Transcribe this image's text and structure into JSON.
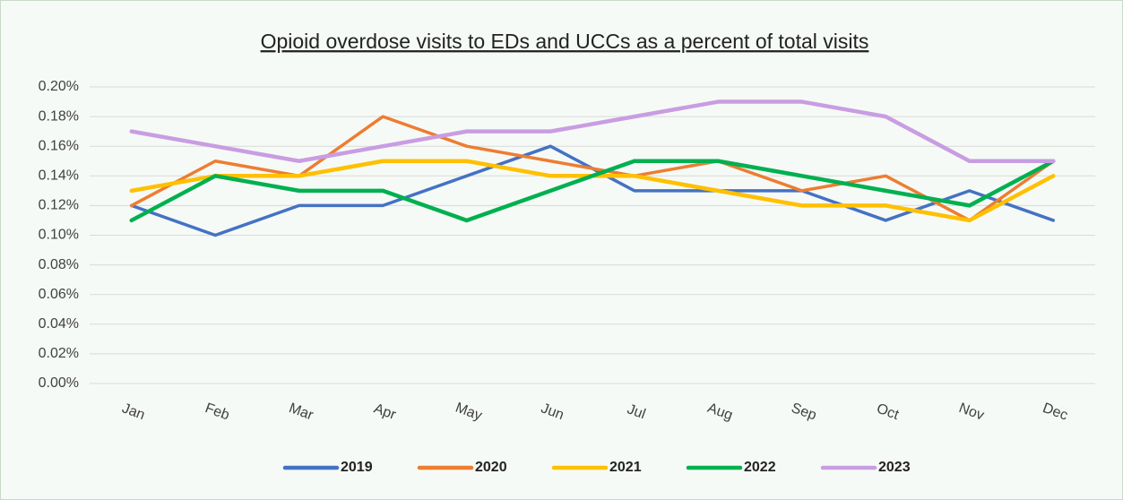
{
  "chart_data": {
    "type": "line",
    "title": "Opioid overdose visits to EDs and UCCs as a percent of total visits",
    "categories": [
      "Jan",
      "Feb",
      "Mar",
      "Apr",
      "May",
      "Jun",
      "Jul",
      "Aug",
      "Sep",
      "Oct",
      "Nov",
      "Dec"
    ],
    "series": [
      {
        "name": "2019",
        "color": "#4472c4",
        "values": [
          0.12,
          0.1,
          0.12,
          0.12,
          0.14,
          0.16,
          0.13,
          0.13,
          0.13,
          0.11,
          0.13,
          0.11
        ]
      },
      {
        "name": "2020",
        "color": "#ed7d31",
        "values": [
          0.12,
          0.15,
          0.14,
          0.18,
          0.16,
          0.15,
          0.14,
          0.15,
          0.13,
          0.14,
          0.11,
          0.15
        ]
      },
      {
        "name": "2021",
        "color": "#ffc000",
        "values": [
          0.13,
          0.14,
          0.14,
          0.15,
          0.15,
          0.14,
          0.14,
          0.13,
          0.12,
          0.12,
          0.11,
          0.14
        ]
      },
      {
        "name": "2022",
        "color": "#00b050",
        "values": [
          0.11,
          0.14,
          0.13,
          0.13,
          0.11,
          0.13,
          0.15,
          0.15,
          0.14,
          0.13,
          0.12,
          0.15
        ]
      },
      {
        "name": "2023",
        "color": "#c99de2",
        "values": [
          0.17,
          0.16,
          0.15,
          0.16,
          0.17,
          0.17,
          0.18,
          0.19,
          0.19,
          0.18,
          0.15,
          0.15
        ]
      }
    ],
    "ylim": [
      0,
      0.2
    ],
    "yticks": [
      {
        "value": 0,
        "label": "0.00%"
      },
      {
        "value": 0.02,
        "label": "0.02%"
      },
      {
        "value": 0.04,
        "label": "0.04%"
      },
      {
        "value": 0.06,
        "label": "0.06%"
      },
      {
        "value": 0.08,
        "label": "0.08%"
      },
      {
        "value": 0.1,
        "label": "0.10%"
      },
      {
        "value": 0.12,
        "label": "0.12%"
      },
      {
        "value": 0.14,
        "label": "0.14%"
      },
      {
        "value": 0.16,
        "label": "0.16%"
      },
      {
        "value": 0.18,
        "label": "0.18%"
      },
      {
        "value": 0.2,
        "label": "0.20%"
      }
    ],
    "grid": true,
    "legend": "bottom"
  }
}
